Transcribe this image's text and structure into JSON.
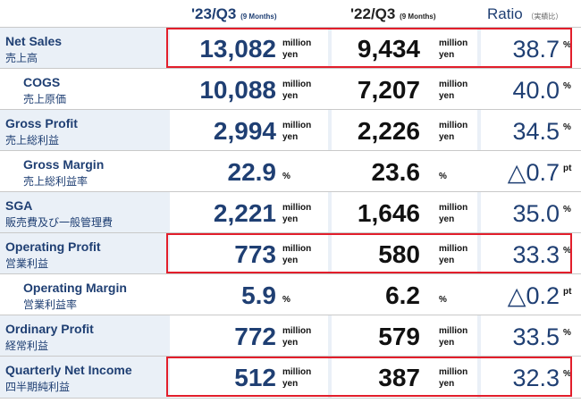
{
  "header": {
    "current_label": "'23/Q3",
    "current_period": "(9 Months)",
    "previous_label": "'22/Q3",
    "previous_period": "(9 Months)",
    "ratio_label": "Ratio",
    "ratio_jp": "（実績比）"
  },
  "rows": [
    {
      "label_en": "Net Sales",
      "label_jp": "売上高",
      "current": "13,082",
      "current_unit_1": "million",
      "current_unit_2": "yen",
      "previous": "9,434",
      "previous_unit_1": "million",
      "previous_unit_2": "yen",
      "ratio": "38.7",
      "ratio_unit": "%",
      "highlighted": true
    },
    {
      "label_en": "COGS",
      "label_jp": "売上原価",
      "current": "10,088",
      "current_unit_1": "million",
      "current_unit_2": "yen",
      "previous": "7,207",
      "previous_unit_1": "million",
      "previous_unit_2": "yen",
      "ratio": "40.0",
      "ratio_unit": "%",
      "highlighted": false
    },
    {
      "label_en": "Gross Profit",
      "label_jp": "売上総利益",
      "current": "2,994",
      "current_unit_1": "million",
      "current_unit_2": "yen",
      "previous": "2,226",
      "previous_unit_1": "million",
      "previous_unit_2": "yen",
      "ratio": "34.5",
      "ratio_unit": "%",
      "highlighted": false
    },
    {
      "label_en": "Gross Margin",
      "label_jp": "売上総利益率",
      "current": "22.9",
      "current_unit_1": "%",
      "current_unit_2": "",
      "previous": "23.6",
      "previous_unit_1": "%",
      "previous_unit_2": "",
      "ratio": "△0.7",
      "ratio_unit": "pt",
      "highlighted": false
    },
    {
      "label_en": "SGA",
      "label_jp": "販売費及び一般管理費",
      "current": "2,221",
      "current_unit_1": "million",
      "current_unit_2": "yen",
      "previous": "1,646",
      "previous_unit_1": "million",
      "previous_unit_2": "yen",
      "ratio": "35.0",
      "ratio_unit": "%",
      "highlighted": false
    },
    {
      "label_en": "Operating Profit",
      "label_jp": "営業利益",
      "current": "773",
      "current_unit_1": "million",
      "current_unit_2": "yen",
      "previous": "580",
      "previous_unit_1": "million",
      "previous_unit_2": "yen",
      "ratio": "33.3",
      "ratio_unit": "%",
      "highlighted": true
    },
    {
      "label_en": "Operating Margin",
      "label_jp": "営業利益率",
      "current": "5.9",
      "current_unit_1": "%",
      "current_unit_2": "",
      "previous": "6.2",
      "previous_unit_1": "%",
      "previous_unit_2": "",
      "ratio": "△0.2",
      "ratio_unit": "pt",
      "highlighted": false
    },
    {
      "label_en": "Ordinary Profit",
      "label_jp": "経常利益",
      "current": "772",
      "current_unit_1": "million",
      "current_unit_2": "yen",
      "previous": "579",
      "previous_unit_1": "million",
      "previous_unit_2": "yen",
      "ratio": "33.5",
      "ratio_unit": "%",
      "highlighted": false
    },
    {
      "label_en": "Quarterly Net Income",
      "label_jp": "四半期純利益",
      "current": "512",
      "current_unit_1": "million",
      "current_unit_2": "yen",
      "previous": "387",
      "previous_unit_1": "million",
      "previous_unit_2": "yen",
      "ratio": "32.3",
      "ratio_unit": "%",
      "highlighted": true
    }
  ],
  "colors": {
    "accent": "#1f3f73",
    "highlight": "#e21e2b",
    "band": "#eaf0f7"
  }
}
